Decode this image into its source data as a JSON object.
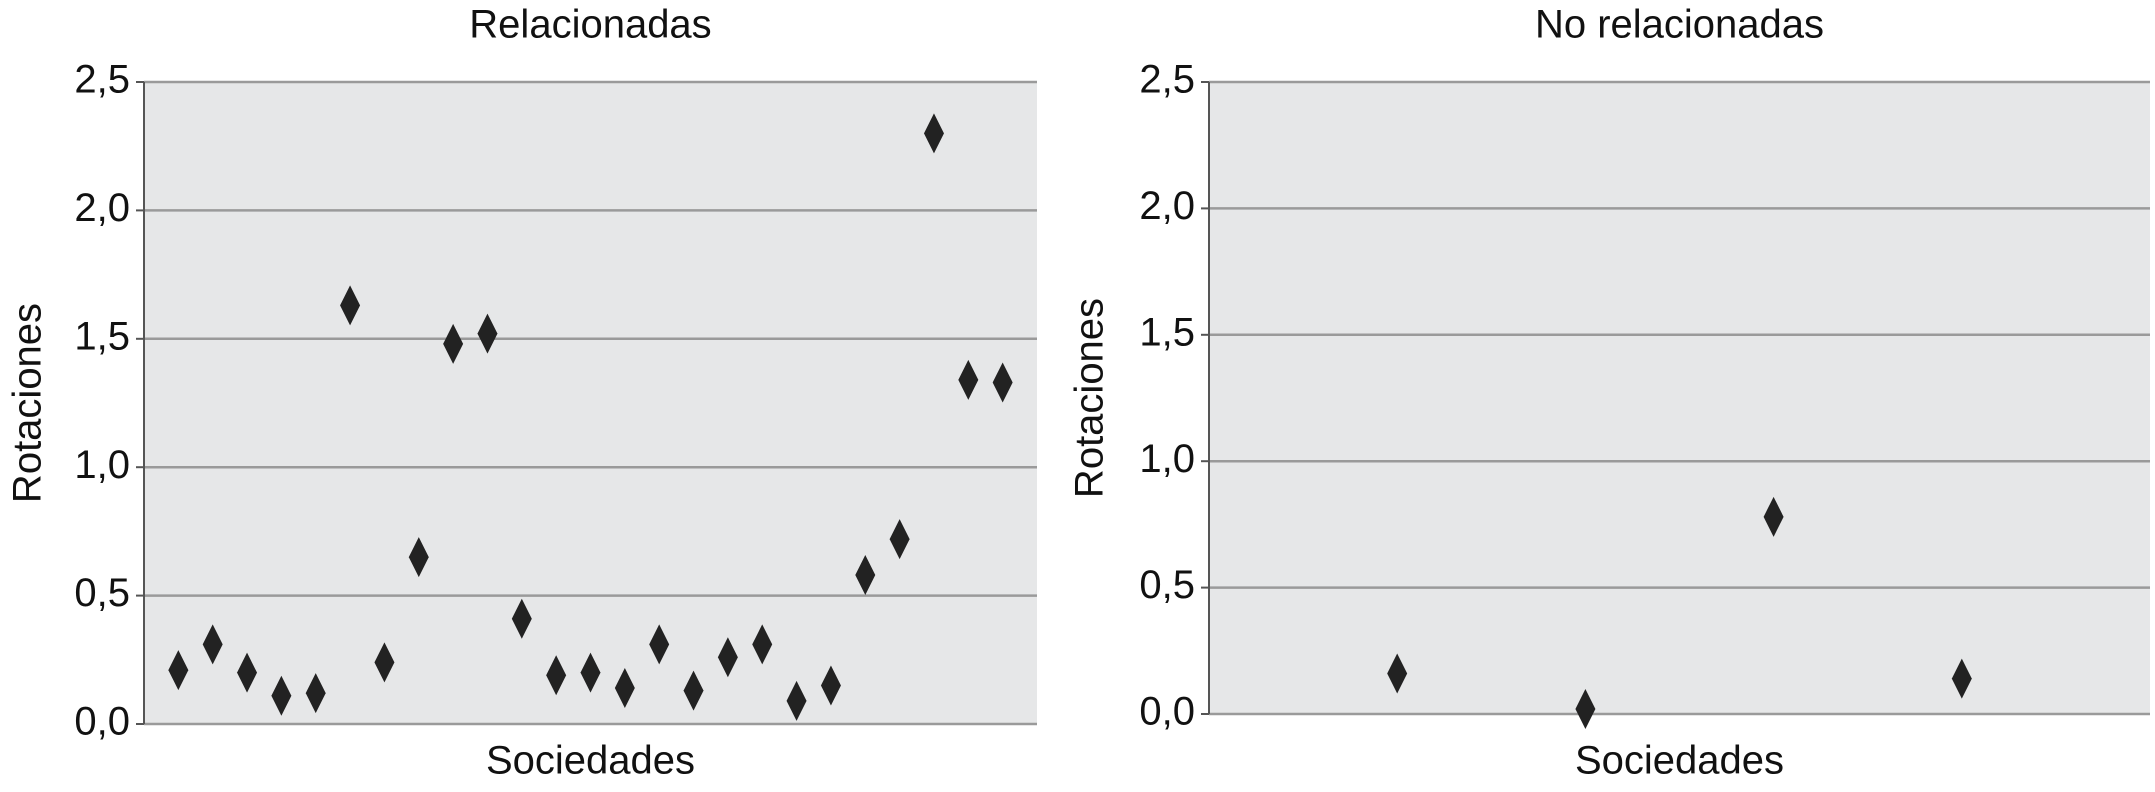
{
  "chart_data": [
    {
      "type": "scatter",
      "title": "Relacionadas",
      "xlabel": "Sociedades",
      "ylabel": "Rotaciones",
      "x": [
        1,
        2,
        3,
        4,
        5,
        6,
        7,
        8,
        9,
        10,
        11,
        12,
        13,
        14,
        15,
        16,
        17,
        18,
        19,
        20,
        21,
        22,
        23,
        24,
        25
      ],
      "values": [
        0.21,
        0.31,
        0.2,
        0.11,
        0.12,
        1.63,
        0.24,
        0.65,
        1.48,
        1.52,
        0.41,
        0.19,
        0.2,
        0.14,
        0.31,
        0.13,
        0.26,
        0.31,
        0.09,
        0.15,
        0.58,
        0.72,
        2.3,
        1.34,
        1.33
      ],
      "color": "#222222",
      "xlim": [
        0,
        26
      ],
      "ylim": [
        0,
        2.5
      ],
      "yticks": [
        {
          "value": 0,
          "label": "0,0"
        },
        {
          "value": 0.5,
          "label": "0,5"
        },
        {
          "value": 1,
          "label": "1,0"
        },
        {
          "value": 1.5,
          "label": "1,5"
        },
        {
          "value": 2,
          "label": "2,0"
        },
        {
          "value": 2.5,
          "label": "2,5"
        }
      ],
      "grid": true
    },
    {
      "type": "scatter",
      "title": "No relacionadas",
      "xlabel": "Sociedades",
      "ylabel": "Rotaciones",
      "x": [
        1,
        2,
        3,
        4
      ],
      "values": [
        0.16,
        0.02,
        0.78,
        0.14
      ],
      "color": "#222222",
      "xlim": [
        0,
        5
      ],
      "ylim": [
        0,
        2.5
      ],
      "yticks": [
        {
          "value": 0,
          "label": "0,0"
        },
        {
          "value": 0.5,
          "label": "0,5"
        },
        {
          "value": 1,
          "label": "1,0"
        },
        {
          "value": 1.5,
          "label": "1,5"
        },
        {
          "value": 2,
          "label": "2,0"
        },
        {
          "value": 2.5,
          "label": "2,5"
        }
      ],
      "grid": true
    }
  ]
}
